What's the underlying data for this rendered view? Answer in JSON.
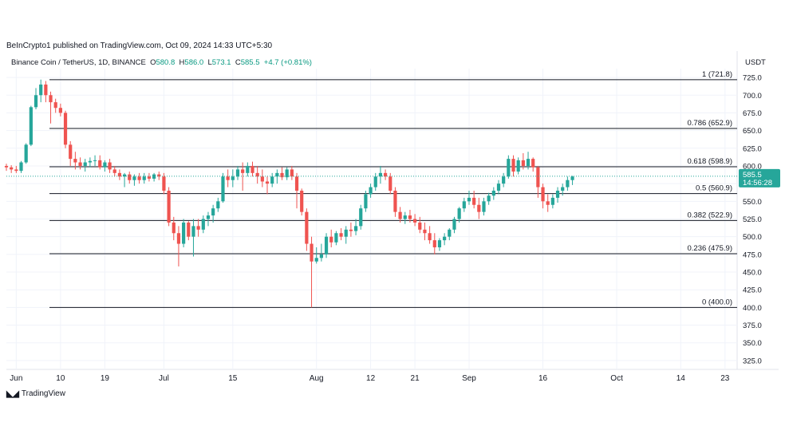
{
  "header": {
    "published": "BeInCrypto1 published on TradingView.com, Oct 09, 2024 14:33 UTC+5:30",
    "symbol": "Binance Coin / TetherUS, 1D, BINANCE",
    "o_label": "O",
    "o_value": "580.8",
    "h_label": "H",
    "h_value": "586.0",
    "l_label": "L",
    "l_value": "573.1",
    "c_label": "C",
    "c_value": "585.5",
    "change": "+4.7 (+0.81%)",
    "currency": "USDT"
  },
  "footer": {
    "brand": "TradingView"
  },
  "colors": {
    "up": "#26a69a",
    "down": "#ef5350",
    "grid": "#f0f3fa",
    "fib": "#131722"
  },
  "chart_data": {
    "type": "candlestick",
    "ylim": [
      312.5,
      737.5
    ],
    "yticks": [
      325,
      350,
      375,
      400,
      425,
      450,
      475,
      500,
      525,
      550,
      575,
      600,
      625,
      650,
      675,
      700,
      725
    ],
    "ytick_labels": [
      "325.0",
      "350.0",
      "375.0",
      "400.0",
      "425.0",
      "450.0",
      "475.0",
      "500.0",
      "525.0",
      "550.0",
      "575.0",
      "600.0",
      "625.0",
      "650.0",
      "675.0",
      "700.0",
      "725.0"
    ],
    "xticks": [
      {
        "label": "Jun",
        "day": 2
      },
      {
        "label": "10",
        "day": 11
      },
      {
        "label": "19",
        "day": 20
      },
      {
        "label": "Jul",
        "day": 32
      },
      {
        "label": "15",
        "day": 46
      },
      {
        "label": "Aug",
        "day": 63
      },
      {
        "label": "12",
        "day": 74
      },
      {
        "label": "21",
        "day": 83
      },
      {
        "label": "Sep",
        "day": 94
      },
      {
        "label": "16",
        "day": 109
      },
      {
        "label": "Oct",
        "day": 124
      },
      {
        "label": "14",
        "day": 137
      },
      {
        "label": "23",
        "day": 146
      }
    ],
    "current_price": "585.5",
    "countdown": "14:56:28",
    "fib_levels": [
      {
        "label": "1 (721.8)",
        "value": 721.8
      },
      {
        "label": "0.786 (652.9)",
        "value": 652.9
      },
      {
        "label": "0.618 (598.9)",
        "value": 598.9
      },
      {
        "label": "0.5 (560.9)",
        "value": 560.9
      },
      {
        "label": "0.382 (522.9)",
        "value": 522.9
      },
      {
        "label": "0.236 (475.9)",
        "value": 475.9
      },
      {
        "label": "0 (400.0)",
        "value": 400.0
      }
    ],
    "candles": [
      [
        600,
        603,
        593,
        598
      ],
      [
        598,
        601,
        590,
        595
      ],
      [
        595,
        600,
        590,
        593
      ],
      [
        593,
        607,
        590,
        605
      ],
      [
        605,
        632,
        603,
        630
      ],
      [
        630,
        685,
        628,
        683
      ],
      [
        683,
        710,
        680,
        700
      ],
      [
        700,
        722,
        690,
        715
      ],
      [
        715,
        720,
        690,
        700
      ],
      [
        700,
        705,
        660,
        690
      ],
      [
        690,
        695,
        675,
        682
      ],
      [
        682,
        688,
        670,
        675
      ],
      [
        675,
        678,
        625,
        630
      ],
      [
        630,
        635,
        600,
        610
      ],
      [
        610,
        620,
        595,
        605
      ],
      [
        605,
        612,
        595,
        600
      ],
      [
        600,
        610,
        592,
        605
      ],
      [
        605,
        612,
        598,
        607
      ],
      [
        607,
        615,
        600,
        608
      ],
      [
        608,
        615,
        595,
        598
      ],
      [
        598,
        608,
        592,
        605
      ],
      [
        605,
        610,
        590,
        595
      ],
      [
        595,
        600,
        585,
        590
      ],
      [
        590,
        595,
        580,
        585
      ],
      [
        585,
        590,
        570,
        588
      ],
      [
        588,
        592,
        575,
        580
      ],
      [
        580,
        588,
        572,
        585
      ],
      [
        585,
        590,
        575,
        580
      ],
      [
        580,
        590,
        575,
        585
      ],
      [
        585,
        590,
        578,
        582
      ],
      [
        582,
        590,
        578,
        588
      ],
      [
        588,
        592,
        580,
        585
      ],
      [
        585,
        590,
        560,
        565
      ],
      [
        565,
        570,
        515,
        520
      ],
      [
        520,
        528,
        495,
        505
      ],
      [
        505,
        515,
        458,
        490
      ],
      [
        490,
        525,
        485,
        520
      ],
      [
        520,
        522,
        495,
        500
      ],
      [
        500,
        525,
        472,
        515
      ],
      [
        515,
        525,
        500,
        510
      ],
      [
        510,
        530,
        505,
        525
      ],
      [
        525,
        535,
        515,
        530
      ],
      [
        530,
        545,
        520,
        540
      ],
      [
        540,
        555,
        535,
        550
      ],
      [
        550,
        590,
        548,
        585
      ],
      [
        585,
        595,
        570,
        580
      ],
      [
        580,
        595,
        570,
        585
      ],
      [
        585,
        600,
        580,
        595
      ],
      [
        595,
        605,
        565,
        590
      ],
      [
        590,
        605,
        585,
        600
      ],
      [
        600,
        606,
        585,
        590
      ],
      [
        590,
        600,
        575,
        585
      ],
      [
        585,
        595,
        570,
        578
      ],
      [
        578,
        585,
        560,
        575
      ],
      [
        575,
        590,
        570,
        585
      ],
      [
        585,
        595,
        575,
        590
      ],
      [
        590,
        598,
        580,
        584
      ],
      [
        584,
        598,
        580,
        595
      ],
      [
        595,
        600,
        580,
        585
      ],
      [
        585,
        590,
        540,
        565
      ],
      [
        565,
        568,
        530,
        535
      ],
      [
        535,
        540,
        480,
        490
      ],
      [
        490,
        500,
        400,
        465
      ],
      [
        465,
        485,
        462,
        470
      ],
      [
        470,
        490,
        465,
        475
      ],
      [
        475,
        505,
        470,
        500
      ],
      [
        500,
        510,
        485,
        492
      ],
      [
        492,
        508,
        488,
        505
      ],
      [
        505,
        512,
        495,
        500
      ],
      [
        500,
        515,
        490,
        510
      ],
      [
        510,
        520,
        500,
        508
      ],
      [
        508,
        525,
        502,
        515
      ],
      [
        515,
        545,
        510,
        540
      ],
      [
        540,
        565,
        535,
        560
      ],
      [
        560,
        575,
        555,
        570
      ],
      [
        570,
        590,
        565,
        585
      ],
      [
        585,
        600,
        575,
        590
      ],
      [
        590,
        595,
        580,
        585
      ],
      [
        585,
        590,
        560,
        565
      ],
      [
        565,
        570,
        528,
        535
      ],
      [
        535,
        542,
        520,
        525
      ],
      [
        525,
        535,
        518,
        530
      ],
      [
        530,
        538,
        520,
        525
      ],
      [
        525,
        532,
        515,
        520
      ],
      [
        520,
        528,
        505,
        510
      ],
      [
        510,
        520,
        495,
        505
      ],
      [
        505,
        515,
        490,
        495
      ],
      [
        495,
        505,
        475,
        485
      ],
      [
        485,
        498,
        480,
        495
      ],
      [
        495,
        505,
        488,
        500
      ],
      [
        500,
        512,
        495,
        510
      ],
      [
        510,
        528,
        505,
        525
      ],
      [
        525,
        542,
        520,
        540
      ],
      [
        540,
        555,
        535,
        550
      ],
      [
        550,
        565,
        545,
        555
      ],
      [
        555,
        565,
        540,
        545
      ],
      [
        545,
        555,
        525,
        535
      ],
      [
        535,
        555,
        530,
        550
      ],
      [
        550,
        562,
        545,
        558
      ],
      [
        558,
        570,
        552,
        565
      ],
      [
        565,
        580,
        560,
        575
      ],
      [
        575,
        590,
        570,
        585
      ],
      [
        585,
        615,
        582,
        610
      ],
      [
        610,
        615,
        585,
        592
      ],
      [
        592,
        612,
        588,
        608
      ],
      [
        608,
        618,
        595,
        600
      ],
      [
        600,
        620,
        595,
        610
      ],
      [
        610,
        612,
        592,
        598
      ],
      [
        598,
        600,
        555,
        570
      ],
      [
        570,
        575,
        540,
        550
      ],
      [
        550,
        560,
        535,
        545
      ],
      [
        545,
        560,
        540,
        555
      ],
      [
        555,
        570,
        548,
        565
      ],
      [
        565,
        575,
        558,
        570
      ],
      [
        570,
        585,
        565,
        580
      ],
      [
        580,
        586,
        573,
        585
      ]
    ]
  }
}
